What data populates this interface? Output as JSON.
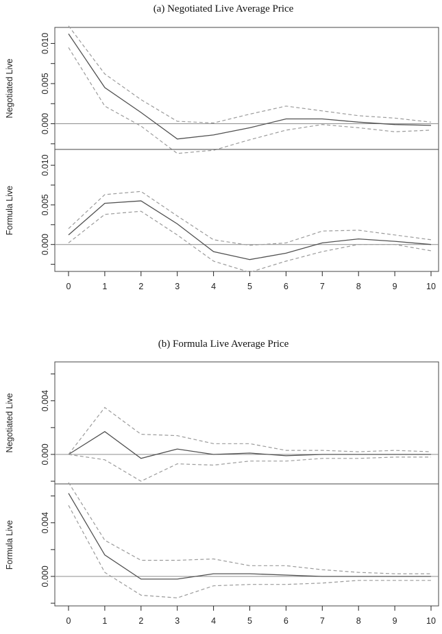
{
  "chart_data": [
    {
      "type": "line",
      "title": "(a)  Negotiated Live Average Price",
      "x": [
        0,
        1,
        2,
        3,
        4,
        5,
        6,
        7,
        8,
        9,
        10
      ],
      "x_ticks": [
        "0",
        "1",
        "2",
        "3",
        "4",
        "5",
        "6",
        "7",
        "8",
        "9",
        "10"
      ],
      "panels": [
        {
          "ylabel": "Negotiated Live",
          "ylim": [
            -0.0032,
            0.012
          ],
          "y_ticks": [
            "0.000",
            "0.005",
            "0.010"
          ],
          "y_tick_values": [
            0,
            0.005,
            0.01
          ],
          "series": [
            {
              "style": "solid",
              "values": [
                0.0112,
                0.0045,
                0.0014,
                -0.0019,
                -0.0014,
                -0.0005,
                0.0006,
                0.0006,
                0.0002,
                -0.0001,
                -0.0002
              ]
            },
            {
              "style": "dashed",
              "values": [
                0.0122,
                0.0062,
                0.003,
                0.0003,
                0.0001,
                0.0012,
                0.0022,
                0.0016,
                0.001,
                0.0007,
                0.0002
              ]
            },
            {
              "style": "dashed",
              "values": [
                0.0095,
                0.0022,
                -0.0003,
                -0.0037,
                -0.0033,
                -0.002,
                -0.0008,
                -0.0001,
                -0.0005,
                -0.001,
                -0.0008
              ]
            }
          ]
        },
        {
          "ylabel": "Formula Live",
          "ylim": [
            -0.0034,
            0.012
          ],
          "y_ticks": [
            "0.000",
            "0.005",
            "0.010"
          ],
          "y_tick_values": [
            0,
            0.005,
            0.01
          ],
          "series": [
            {
              "style": "solid",
              "values": [
                0.0012,
                0.0052,
                0.0055,
                0.0026,
                -0.0009,
                -0.0019,
                -0.0011,
                0.0002,
                0.0007,
                0.0004,
                0.0
              ]
            },
            {
              "style": "dashed",
              "values": [
                0.002,
                0.0063,
                0.0067,
                0.0036,
                0.0006,
                -0.0001,
                0.0002,
                0.0017,
                0.0018,
                0.0012,
                0.0006
              ]
            },
            {
              "style": "dashed",
              "values": [
                0.0002,
                0.0038,
                0.0042,
                0.0012,
                -0.0021,
                -0.0035,
                -0.0021,
                -0.0009,
                0.0,
                0.0,
                -0.0008
              ]
            }
          ]
        }
      ]
    },
    {
      "type": "line",
      "title": "(b)  Formula Live Average Price",
      "x": [
        0,
        1,
        2,
        3,
        4,
        5,
        6,
        7,
        8,
        9,
        10
      ],
      "x_ticks": [
        "0",
        "1",
        "2",
        "3",
        "4",
        "5",
        "6",
        "7",
        "8",
        "9",
        "10"
      ],
      "panels": [
        {
          "ylabel": "Negotiated Live",
          "ylim": [
            -0.0022,
            0.0069
          ],
          "y_ticks": [
            "0.000",
            "0.004"
          ],
          "y_tick_values": [
            0,
            0.004
          ],
          "series": [
            {
              "style": "solid",
              "values": [
                0.0,
                0.0017,
                -0.0003,
                0.0004,
                0.0,
                0.0001,
                -0.0001,
                0.0,
                0.0,
                0.0,
                0.0
              ]
            },
            {
              "style": "dashed",
              "values": [
                0.0,
                0.0035,
                0.0015,
                0.0014,
                0.0008,
                0.0008,
                0.0003,
                0.0003,
                0.0002,
                0.0003,
                0.0002
              ]
            },
            {
              "style": "dashed",
              "values": [
                0.0,
                -0.0004,
                -0.002,
                -0.0007,
                -0.0008,
                -0.0005,
                -0.0005,
                -0.0003,
                -0.0003,
                -0.0002,
                -0.0002
              ]
            }
          ]
        },
        {
          "ylabel": "Formula Live",
          "ylim": [
            -0.0022,
            0.0069
          ],
          "y_ticks": [
            "0.000",
            "0.004"
          ],
          "y_tick_values": [
            0,
            0.004
          ],
          "series": [
            {
              "style": "solid",
              "values": [
                0.0062,
                0.0016,
                -0.0002,
                -0.0002,
                0.0002,
                0.0002,
                0.0001,
                0.0,
                0.0,
                0.0,
                0.0
              ]
            },
            {
              "style": "dashed",
              "values": [
                0.007,
                0.0027,
                0.0012,
                0.0012,
                0.0013,
                0.0008,
                0.0008,
                0.0005,
                0.0003,
                0.0002,
                0.0002
              ]
            },
            {
              "style": "dashed",
              "values": [
                0.0053,
                0.0003,
                -0.0014,
                -0.0016,
                -0.0007,
                -0.0006,
                -0.0006,
                -0.0005,
                -0.0003,
                -0.0003,
                -0.0003
              ]
            }
          ]
        }
      ]
    }
  ],
  "colors": {
    "solid_line": "#505050",
    "dashed_line": "#9a9a9a",
    "zero_line": "#8c8c8c",
    "frame": "#444444"
  }
}
